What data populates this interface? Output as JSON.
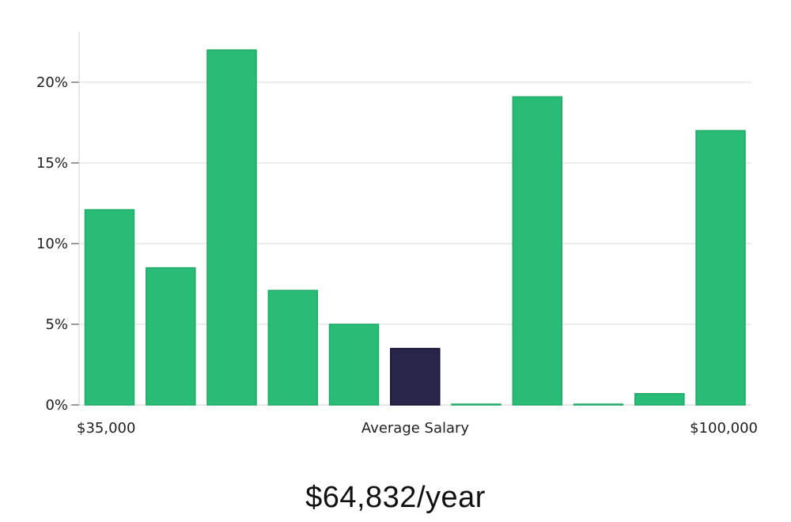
{
  "chart_data": {
    "type": "bar",
    "xlabel": "Average Salary",
    "x_range_labels": [
      "$35,000",
      "$100,000"
    ],
    "ylim": [
      0,
      23
    ],
    "yticks": [
      0,
      5,
      10,
      15,
      20
    ],
    "ytick_labels": [
      "0%",
      "5%",
      "10%",
      "15%",
      "20%"
    ],
    "grid": true,
    "values": [
      12.1,
      8.5,
      22.0,
      7.1,
      5.0,
      3.5,
      0.05,
      19.1,
      0.05,
      0.7,
      17.0
    ],
    "highlight_index": 5,
    "colors": {
      "bar": "#29bc76",
      "bar_edge": "#1faa66",
      "highlight": "#28244a",
      "highlight_edge": "#141230",
      "grid": "#d9d9d9",
      "axis": "#cfcfcf"
    }
  },
  "salary_summary": "$64,832/year"
}
